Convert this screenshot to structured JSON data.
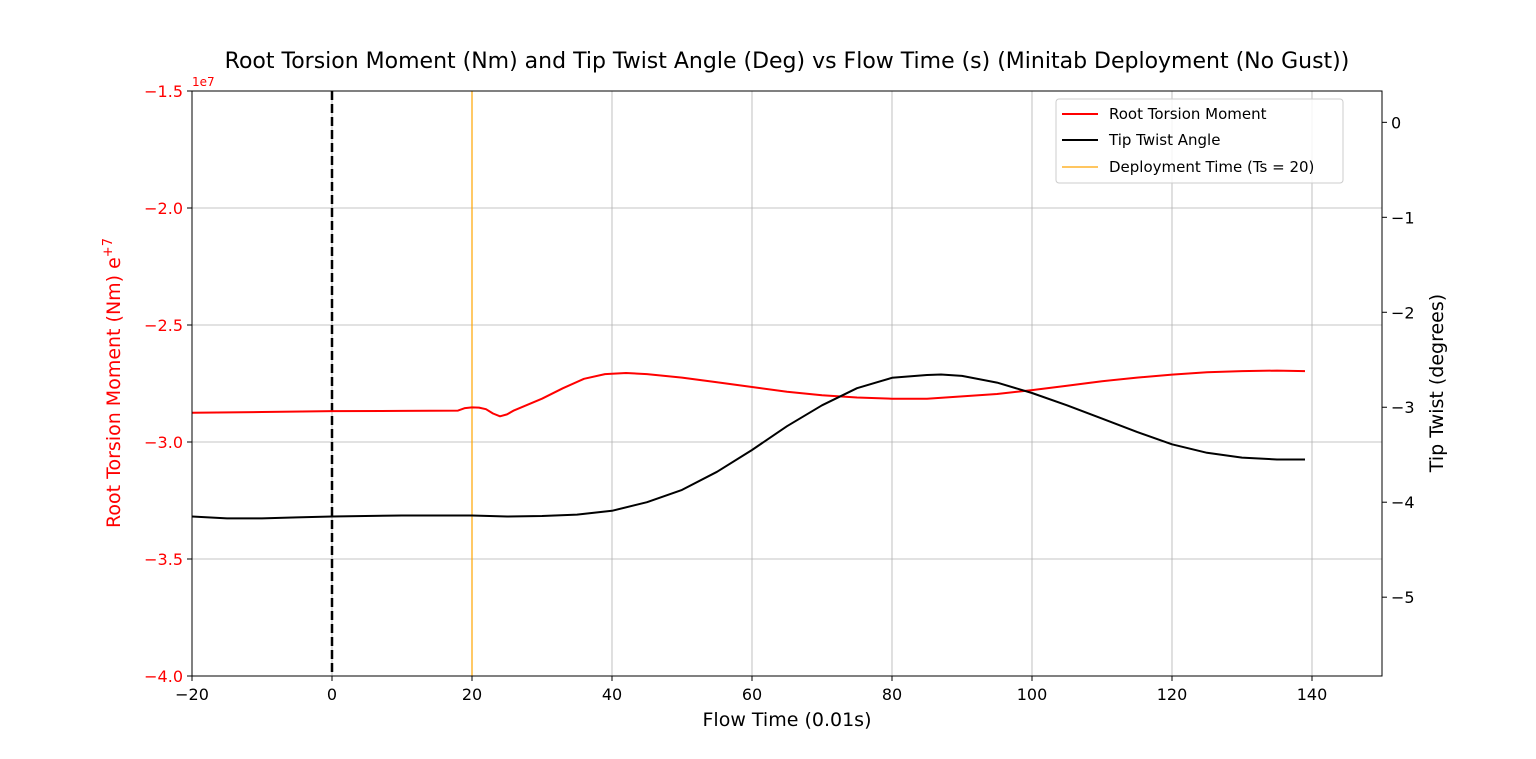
{
  "chart_data": {
    "type": "line",
    "title": "Root Torsion Moment (Nm) and Tip Twist Angle (Deg) vs Flow Time (s) (Minitab Deployment (No Gust))",
    "xlabel": "Flow Time (0.01s)",
    "ylabel_left": "Root Torsion Moment (Nm) e",
    "ylabel_left_sup": "+7",
    "ylabel_right": "Tip Twist (degrees)",
    "left_axis_offset_text": "1e7",
    "xlim": [
      -20,
      150
    ],
    "ylim_left": [
      -4.0,
      -1.5
    ],
    "ylim_right": [
      -5.83,
      0.33
    ],
    "x_ticks": [
      -20,
      0,
      20,
      40,
      60,
      80,
      100,
      120,
      140
    ],
    "x_tick_labels": [
      "−20",
      "0",
      "20",
      "40",
      "60",
      "80",
      "100",
      "120",
      "140"
    ],
    "y_left_ticks": [
      -4.0,
      -3.5,
      -3.0,
      -2.5,
      -2.0,
      -1.5
    ],
    "y_left_tick_labels": [
      "−4.0",
      "−3.5",
      "−3.0",
      "−2.5",
      "−2.0",
      "−1.5"
    ],
    "y_right_ticks": [
      -5,
      -4,
      -3,
      -2,
      -1,
      0
    ],
    "y_right_tick_labels": [
      "−5",
      "−4",
      "−3",
      "−2",
      "−1",
      "0"
    ],
    "grid": true,
    "legend_position": "top-right",
    "series": [
      {
        "name": "Root Torsion Moment",
        "axis": "left",
        "color": "#ff0000",
        "x": [
          -20,
          -10,
          0,
          10,
          18,
          19,
          20,
          21,
          22,
          23,
          24,
          25,
          26,
          28,
          30,
          33,
          36,
          39,
          42,
          45,
          50,
          55,
          60,
          65,
          70,
          75,
          80,
          85,
          90,
          95,
          100,
          105,
          110,
          115,
          120,
          125,
          130,
          135,
          139
        ],
        "y": [
          -2.875,
          -2.872,
          -2.868,
          -2.867,
          -2.866,
          -2.855,
          -2.852,
          -2.853,
          -2.86,
          -2.878,
          -2.89,
          -2.882,
          -2.865,
          -2.84,
          -2.815,
          -2.77,
          -2.73,
          -2.71,
          -2.705,
          -2.71,
          -2.725,
          -2.745,
          -2.765,
          -2.785,
          -2.8,
          -2.81,
          -2.815,
          -2.815,
          -2.805,
          -2.795,
          -2.778,
          -2.76,
          -2.74,
          -2.725,
          -2.712,
          -2.702,
          -2.697,
          -2.695,
          -2.697
        ]
      },
      {
        "name": "Tip Twist Angle",
        "axis": "right",
        "color": "#000000",
        "x": [
          -20,
          -15,
          -10,
          -5,
          0,
          10,
          20,
          25,
          30,
          35,
          40,
          45,
          50,
          55,
          60,
          65,
          70,
          75,
          80,
          85,
          87,
          90,
          95,
          100,
          105,
          110,
          115,
          120,
          125,
          130,
          135,
          139
        ],
        "y": [
          -4.15,
          -4.17,
          -4.17,
          -4.16,
          -4.15,
          -4.14,
          -4.14,
          -4.15,
          -4.145,
          -4.13,
          -4.09,
          -4.0,
          -3.87,
          -3.68,
          -3.45,
          -3.2,
          -2.98,
          -2.8,
          -2.69,
          -2.66,
          -2.655,
          -2.67,
          -2.74,
          -2.85,
          -2.98,
          -3.12,
          -3.26,
          -3.39,
          -3.48,
          -3.53,
          -3.55,
          -3.55
        ]
      }
    ],
    "reference_lines": [
      {
        "name": "Deployment Time (Ts = 20)",
        "x": 20,
        "color": "#ffa500",
        "style": "solid",
        "in_legend": true
      },
      {
        "name": "",
        "x": 0,
        "color": "#000000",
        "style": "dashed",
        "in_legend": false
      }
    ]
  }
}
